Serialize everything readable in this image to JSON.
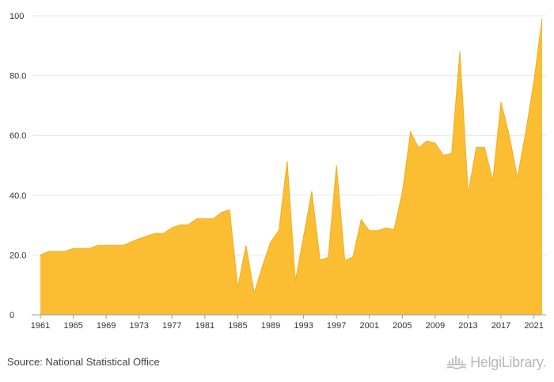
{
  "chart_data": {
    "type": "area",
    "title": "",
    "xlabel": "",
    "ylabel": "",
    "ylim": [
      0,
      100
    ],
    "y_ticks": [
      0,
      20.0,
      40.0,
      60.0,
      80.0,
      100
    ],
    "y_tick_labels": [
      "0",
      "20.0",
      "40.0",
      "60.0",
      "80.0",
      "100"
    ],
    "x_ticks": [
      1961,
      1965,
      1969,
      1973,
      1977,
      1981,
      1985,
      1989,
      1993,
      1997,
      2001,
      2005,
      2009,
      2013,
      2017,
      2021
    ],
    "x_tick_labels": [
      "1961",
      "1965",
      "1969",
      "1973",
      "1977",
      "1981",
      "1985",
      "1989",
      "1993",
      "1997",
      "2001",
      "2005",
      "2009",
      "2013",
      "2017",
      "2021"
    ],
    "grid": true,
    "fill_color": "#FBBE33",
    "line_color": "#F0AE1E",
    "x": [
      1961,
      1962,
      1963,
      1964,
      1965,
      1966,
      1967,
      1968,
      1969,
      1970,
      1971,
      1972,
      1973,
      1974,
      1975,
      1976,
      1977,
      1978,
      1979,
      1980,
      1981,
      1982,
      1983,
      1984,
      1985,
      1986,
      1987,
      1988,
      1989,
      1990,
      1991,
      1992,
      1993,
      1994,
      1995,
      1996,
      1997,
      1998,
      1999,
      2000,
      2001,
      2002,
      2003,
      2004,
      2005,
      2006,
      2007,
      2008,
      2009,
      2010,
      2011,
      2012,
      2013,
      2014,
      2015,
      2016,
      2017,
      2018,
      2019,
      2020,
      2021,
      2022
    ],
    "values": [
      20.0,
      21.2,
      21.2,
      21.2,
      22.2,
      22.2,
      22.2,
      23.2,
      23.2,
      23.2,
      23.2,
      24.3,
      25.4,
      26.4,
      27.2,
      27.2,
      29.1,
      30.1,
      30.1,
      32.1,
      32.1,
      32.1,
      34.2,
      35.1,
      9.1,
      23.2,
      7.2,
      16.3,
      24.3,
      28.2,
      51.4,
      11.2,
      26.2,
      41.3,
      18.3,
      19.2,
      50.0,
      18.2,
      19.3,
      31.8,
      28.1,
      28.1,
      29.1,
      28.5,
      40.9,
      61.1,
      55.8,
      58.2,
      57.4,
      53.3,
      54.0,
      88.1,
      40.5,
      56.0,
      56.0,
      44.8,
      71.1,
      60.0,
      45.8,
      61.0,
      78.0,
      99.1
    ]
  },
  "footer": {
    "source": "Source: National Statistical Office",
    "brand": "HelgiLibrary."
  }
}
